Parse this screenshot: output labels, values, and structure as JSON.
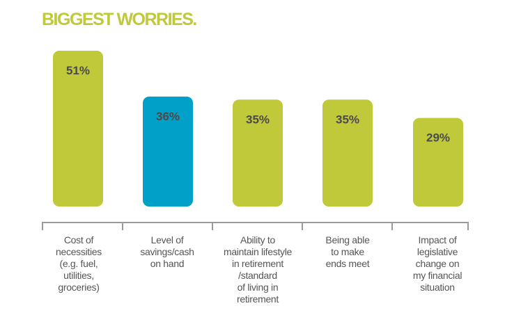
{
  "chart_data": {
    "type": "bar",
    "title": "BIGGEST WORRIES.",
    "categories": [
      "Cost of\nnecessities\n(e.g. fuel,\nutilities,\ngroceries)",
      "Level of\nsavings/cash\non hand",
      "Ability to\nmaintain lifestyle\nin retirement\n/standard\nof living in\nretirement",
      "Being able\nto make\nends meet",
      "Impact of\nlegislative\nchange on\nmy financial\nsituation"
    ],
    "values": [
      51,
      36,
      35,
      35,
      29
    ],
    "data_labels": [
      "51%",
      "36%",
      "35%",
      "35%",
      "29%"
    ],
    "bar_colors": [
      "#c0c93a",
      "#00a0c8",
      "#c0c93a",
      "#c0c93a",
      "#c0c93a"
    ],
    "label_color": "#4a4a4a",
    "axis_color": "#999999",
    "ylim": [
      0,
      51
    ],
    "grid": false,
    "legend": "none"
  }
}
